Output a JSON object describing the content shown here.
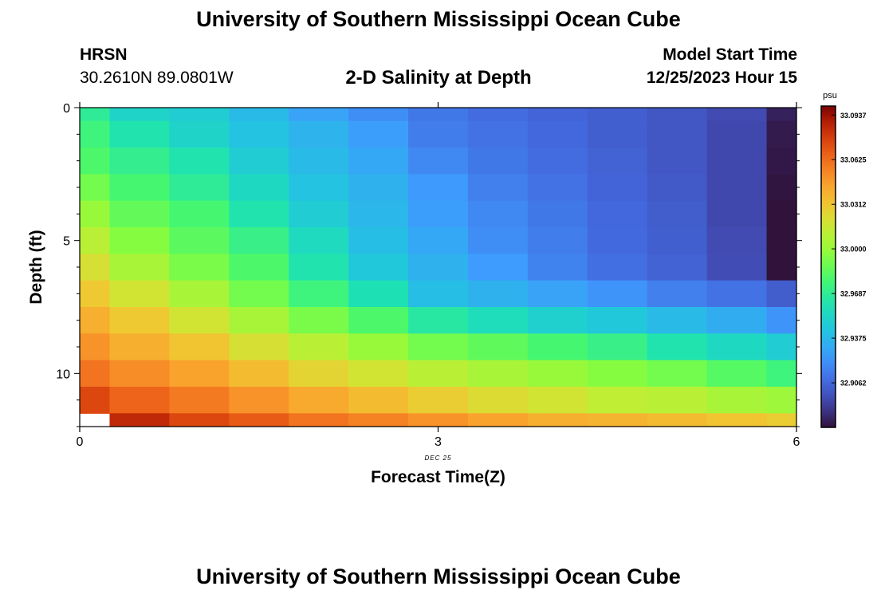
{
  "header": {
    "title": "University of Southern Mississippi Ocean Cube",
    "station": "HRSN",
    "coords": "30.2610N  89.0801W",
    "subtitle": "2-D Salinity at Depth",
    "start_label": "Model Start Time",
    "start_value": "12/25/2023 Hour 15"
  },
  "footer": {
    "title": "University of Southern Mississippi Ocean Cube"
  },
  "chart_data": {
    "type": "heatmap",
    "title": "2-D Salinity at Depth",
    "xlabel": "Forecast Time(Z)",
    "ylabel": "Depth (ft)",
    "x_tick_labels": [
      "0",
      "3",
      "6"
    ],
    "x_date_label": "DEC 25",
    "y_tick_labels": [
      "0",
      "5",
      "10"
    ],
    "xlim": [
      0,
      6
    ],
    "ylim": [
      0,
      12
    ],
    "colorbar": {
      "unit": "psu",
      "min": 32.875,
      "max": 33.1,
      "tick_labels": [
        "33.0937",
        "33.0625",
        "33.0312",
        "33.0000",
        "32.9687",
        "32.9375",
        "32.9062"
      ],
      "tick_values": [
        33.0937,
        33.0625,
        33.0312,
        33.0,
        32.9687,
        32.9375,
        32.9062
      ]
    },
    "column_times": [
      0,
      0.5,
      1,
      1.5,
      2,
      2.5,
      3,
      3.5,
      4,
      4.5,
      5,
      5.5,
      6
    ],
    "row_depths": [
      0,
      1,
      2,
      3,
      4,
      5,
      6,
      7,
      8,
      9,
      10,
      11,
      12
    ],
    "salinity": [
      [
        32.968,
        32.952,
        32.948,
        32.938,
        32.928,
        32.92,
        32.912,
        32.908,
        32.905,
        32.903,
        32.9,
        32.895,
        32.88
      ],
      [
        32.975,
        32.962,
        32.952,
        32.942,
        32.935,
        32.926,
        32.914,
        32.91,
        32.906,
        32.903,
        32.9,
        32.894,
        32.878
      ],
      [
        32.98,
        32.97,
        32.962,
        32.948,
        32.938,
        32.93,
        32.918,
        32.912,
        32.908,
        32.904,
        32.9,
        32.894,
        32.877
      ],
      [
        32.99,
        32.978,
        32.968,
        32.955,
        32.942,
        32.934,
        32.924,
        32.915,
        32.91,
        32.905,
        32.901,
        32.894,
        32.876
      ],
      [
        33.0,
        32.986,
        32.978,
        32.962,
        32.948,
        32.937,
        32.926,
        32.918,
        32.912,
        32.906,
        32.902,
        32.894,
        32.875
      ],
      [
        33.01,
        32.995,
        32.984,
        32.972,
        32.956,
        32.94,
        32.93,
        32.92,
        32.914,
        32.907,
        32.903,
        32.895,
        32.874
      ],
      [
        33.02,
        33.005,
        32.992,
        32.98,
        32.962,
        32.945,
        32.934,
        32.925,
        32.916,
        32.909,
        32.904,
        32.896,
        32.873
      ],
      [
        33.03,
        33.018,
        33.005,
        32.99,
        32.975,
        32.96,
        32.94,
        32.934,
        32.928,
        32.922,
        32.915,
        32.91,
        32.902
      ],
      [
        33.04,
        33.03,
        33.018,
        33.005,
        32.992,
        32.98,
        32.965,
        32.958,
        32.95,
        32.945,
        32.938,
        32.932,
        32.922
      ],
      [
        33.05,
        33.04,
        33.032,
        33.02,
        33.01,
        33.0,
        32.99,
        32.985,
        32.978,
        32.972,
        32.962,
        32.955,
        32.948
      ],
      [
        33.06,
        33.052,
        33.045,
        33.035,
        33.025,
        33.018,
        33.01,
        33.005,
        33.0,
        32.995,
        32.99,
        32.982,
        32.975
      ],
      [
        33.075,
        33.065,
        33.058,
        33.05,
        33.042,
        33.035,
        33.028,
        33.022,
        33.018,
        33.012,
        33.01,
        33.005,
        33.002
      ],
      [
        null,
        33.085,
        33.075,
        33.068,
        33.06,
        33.055,
        33.05,
        33.045,
        33.04,
        33.038,
        33.035,
        33.032,
        33.028
      ]
    ]
  }
}
